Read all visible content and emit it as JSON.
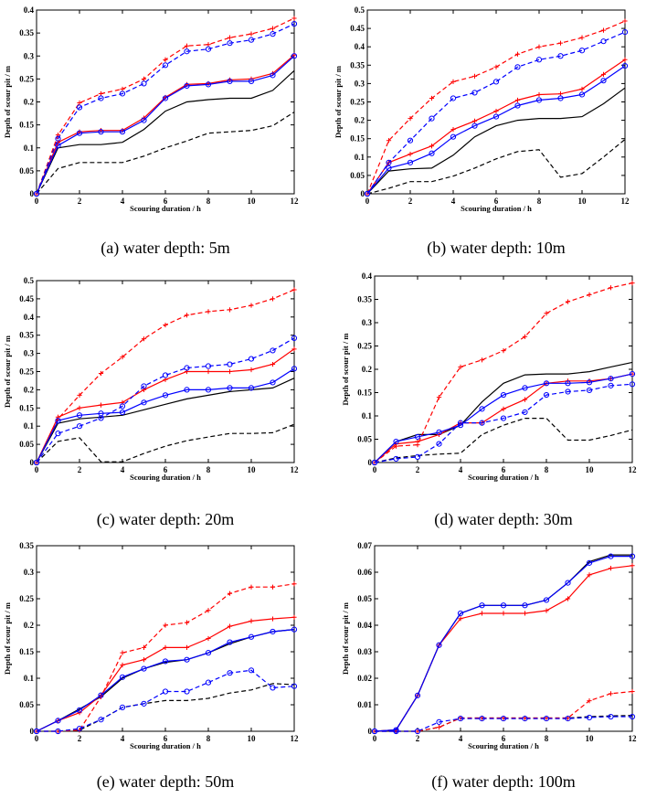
{
  "chart_data": [
    {
      "type": "line",
      "caption": "(a) water depth: 5m",
      "xlabel": "Scouring duration / h",
      "ylabel": "Depth of scour pit / m",
      "xlim": [
        0,
        12
      ],
      "ylim": [
        0,
        0.4
      ],
      "xticks": [
        "0",
        "2",
        "4",
        "6",
        "8",
        "10",
        "12"
      ],
      "yticks": [
        "0",
        "0.05",
        "0.1",
        "0.15",
        "0.2",
        "0.25",
        "0.3",
        "0.35",
        "0.4"
      ],
      "grid": false,
      "x": [
        0,
        1,
        2,
        3,
        4,
        5,
        6,
        7,
        8,
        9,
        10,
        11,
        12
      ],
      "series": [
        {
          "color": "#000000",
          "dash": "solid",
          "marker": "none",
          "values": [
            0,
            0.1,
            0.107,
            0.107,
            0.112,
            0.14,
            0.18,
            0.2,
            0.205,
            0.208,
            0.208,
            0.225,
            0.268
          ]
        },
        {
          "color": "#000000",
          "dash": "dashed",
          "marker": "none",
          "values": [
            0,
            0.055,
            0.068,
            0.068,
            0.068,
            0.082,
            0.1,
            0.115,
            0.132,
            0.135,
            0.138,
            0.148,
            0.178
          ]
        },
        {
          "color": "#ff0000",
          "dash": "solid",
          "marker": "plus",
          "values": [
            0,
            0.112,
            0.135,
            0.138,
            0.138,
            0.165,
            0.21,
            0.238,
            0.24,
            0.248,
            0.25,
            0.262,
            0.302
          ]
        },
        {
          "color": "#ff0000",
          "dash": "dashed",
          "marker": "plus",
          "values": [
            0,
            0.128,
            0.198,
            0.218,
            0.228,
            0.25,
            0.292,
            0.322,
            0.325,
            0.34,
            0.348,
            0.36,
            0.382
          ]
        },
        {
          "color": "#0000ff",
          "dash": "solid",
          "marker": "circle",
          "values": [
            0,
            0.105,
            0.132,
            0.135,
            0.135,
            0.16,
            0.208,
            0.235,
            0.238,
            0.245,
            0.245,
            0.258,
            0.3
          ]
        },
        {
          "color": "#0000ff",
          "dash": "dashed",
          "marker": "circle",
          "values": [
            0,
            0.12,
            0.188,
            0.208,
            0.218,
            0.24,
            0.28,
            0.31,
            0.315,
            0.328,
            0.335,
            0.348,
            0.37
          ]
        }
      ]
    },
    {
      "type": "line",
      "caption": "(b) water depth: 10m",
      "xlabel": "Scouring duration / h",
      "ylabel": "Depth of scour pit / m",
      "xlim": [
        0,
        12
      ],
      "ylim": [
        0,
        0.5
      ],
      "xticks": [
        "0",
        "2",
        "4",
        "6",
        "8",
        "10",
        "12"
      ],
      "yticks": [
        "0",
        "0.05",
        "0.1",
        "0.15",
        "0.2",
        "0.25",
        "0.3",
        "0.35",
        "0.4",
        "0.45",
        "0.5"
      ],
      "grid": false,
      "x": [
        0,
        1,
        2,
        3,
        4,
        5,
        6,
        7,
        8,
        9,
        10,
        11,
        12
      ],
      "series": [
        {
          "color": "#000000",
          "dash": "solid",
          "marker": "none",
          "values": [
            0,
            0.062,
            0.068,
            0.07,
            0.105,
            0.155,
            0.185,
            0.2,
            0.205,
            0.205,
            0.21,
            0.245,
            0.288
          ]
        },
        {
          "color": "#000000",
          "dash": "dashed",
          "marker": "none",
          "values": [
            0,
            0.015,
            0.033,
            0.033,
            0.048,
            0.07,
            0.095,
            0.115,
            0.12,
            0.045,
            0.055,
            0.1,
            0.148
          ]
        },
        {
          "color": "#ff0000",
          "dash": "solid",
          "marker": "plus",
          "values": [
            0,
            0.085,
            0.108,
            0.13,
            0.175,
            0.198,
            0.225,
            0.255,
            0.27,
            0.272,
            0.285,
            0.325,
            0.365
          ]
        },
        {
          "color": "#ff0000",
          "dash": "dashed",
          "marker": "plus",
          "values": [
            0,
            0.145,
            0.205,
            0.26,
            0.305,
            0.32,
            0.345,
            0.38,
            0.4,
            0.41,
            0.425,
            0.445,
            0.47
          ]
        },
        {
          "color": "#0000ff",
          "dash": "solid",
          "marker": "circle",
          "values": [
            0,
            0.07,
            0.085,
            0.11,
            0.155,
            0.185,
            0.21,
            0.24,
            0.255,
            0.26,
            0.27,
            0.308,
            0.348
          ]
        },
        {
          "color": "#0000ff",
          "dash": "dashed",
          "marker": "circle",
          "values": [
            0,
            0.085,
            0.145,
            0.205,
            0.26,
            0.275,
            0.305,
            0.345,
            0.365,
            0.375,
            0.39,
            0.415,
            0.44
          ]
        }
      ]
    },
    {
      "type": "line",
      "caption": "(c) water depth: 20m",
      "xlabel": "Scouring duration / h",
      "ylabel": "Depth of scour pit / m",
      "xlim": [
        0,
        12
      ],
      "ylim": [
        0,
        0.5
      ],
      "xticks": [
        "0",
        "2",
        "4",
        "6",
        "8",
        "10",
        "12"
      ],
      "yticks": [
        "0",
        "0.05",
        "0.1",
        "0.15",
        "0.2",
        "0.25",
        "0.3",
        "0.35",
        "0.4",
        "0.45",
        "0.5"
      ],
      "grid": false,
      "x": [
        0,
        1,
        2,
        3,
        4,
        5,
        6,
        7,
        8,
        9,
        10,
        11,
        12
      ],
      "series": [
        {
          "color": "#000000",
          "dash": "solid",
          "marker": "none",
          "values": [
            0,
            0.108,
            0.12,
            0.125,
            0.13,
            0.145,
            0.16,
            0.175,
            0.185,
            0.195,
            0.2,
            0.205,
            0.232
          ]
        },
        {
          "color": "#000000",
          "dash": "dashed",
          "marker": "none",
          "values": [
            0,
            0.058,
            0.068,
            0.002,
            0.002,
            0.025,
            0.045,
            0.06,
            0.07,
            0.08,
            0.08,
            0.082,
            0.105
          ]
        },
        {
          "color": "#ff0000",
          "dash": "solid",
          "marker": "plus",
          "values": [
            0,
            0.125,
            0.15,
            0.158,
            0.165,
            0.2,
            0.228,
            0.25,
            0.25,
            0.25,
            0.255,
            0.27,
            0.312
          ]
        },
        {
          "color": "#ff0000",
          "dash": "dashed",
          "marker": "plus",
          "values": [
            0,
            0.12,
            0.185,
            0.245,
            0.29,
            0.34,
            0.378,
            0.405,
            0.415,
            0.42,
            0.432,
            0.45,
            0.475
          ]
        },
        {
          "color": "#0000ff",
          "dash": "solid",
          "marker": "circle",
          "values": [
            0,
            0.115,
            0.13,
            0.135,
            0.138,
            0.165,
            0.185,
            0.2,
            0.2,
            0.205,
            0.205,
            0.22,
            0.258
          ]
        },
        {
          "color": "#0000ff",
          "dash": "dashed",
          "marker": "circle",
          "values": [
            0,
            0.08,
            0.1,
            0.122,
            0.155,
            0.21,
            0.24,
            0.26,
            0.265,
            0.27,
            0.285,
            0.308,
            0.342
          ]
        }
      ]
    },
    {
      "type": "line",
      "caption": "(d) water depth: 30m",
      "xlabel": "Scouring duration / h",
      "ylabel": "Depth of scour pit / m",
      "xlim": [
        0,
        12
      ],
      "ylim": [
        0,
        0.4
      ],
      "xticks": [
        "0",
        "2",
        "4",
        "6",
        "8",
        "10",
        "12"
      ],
      "yticks": [
        "0",
        "0.05",
        "0.1",
        "0.15",
        "0.2",
        "0.25",
        "0.3",
        "0.35",
        "0.4"
      ],
      "grid": false,
      "x": [
        0,
        1,
        2,
        3,
        4,
        5,
        6,
        7,
        8,
        9,
        10,
        11,
        12
      ],
      "series": [
        {
          "color": "#000000",
          "dash": "solid",
          "marker": "none",
          "values": [
            0,
            0.045,
            0.06,
            0.06,
            0.08,
            0.13,
            0.17,
            0.188,
            0.19,
            0.19,
            0.195,
            0.205,
            0.215
          ]
        },
        {
          "color": "#000000",
          "dash": "dashed",
          "marker": "none",
          "values": [
            0,
            0.01,
            0.015,
            0.018,
            0.02,
            0.06,
            0.08,
            0.095,
            0.095,
            0.048,
            0.048,
            0.058,
            0.07
          ]
        },
        {
          "color": "#ff0000",
          "dash": "solid",
          "marker": "plus",
          "values": [
            0,
            0.04,
            0.045,
            0.06,
            0.085,
            0.085,
            0.115,
            0.135,
            0.17,
            0.175,
            0.175,
            0.18,
            0.19
          ]
        },
        {
          "color": "#ff0000",
          "dash": "dashed",
          "marker": "plus",
          "values": [
            0,
            0.035,
            0.038,
            0.14,
            0.205,
            0.22,
            0.24,
            0.27,
            0.32,
            0.345,
            0.36,
            0.375,
            0.385
          ]
        },
        {
          "color": "#0000ff",
          "dash": "solid",
          "marker": "circle",
          "values": [
            0,
            0.045,
            0.055,
            0.065,
            0.08,
            0.115,
            0.145,
            0.16,
            0.17,
            0.17,
            0.172,
            0.18,
            0.19
          ]
        },
        {
          "color": "#0000ff",
          "dash": "dashed",
          "marker": "circle",
          "values": [
            0,
            0.008,
            0.012,
            0.04,
            0.085,
            0.085,
            0.095,
            0.108,
            0.145,
            0.152,
            0.155,
            0.165,
            0.168
          ]
        }
      ]
    },
    {
      "type": "line",
      "caption": "(e) water depth: 50m",
      "xlabel": "Scouring duration / h",
      "ylabel": "Depth of scour pit / m",
      "xlim": [
        0,
        12
      ],
      "ylim": [
        0,
        0.35
      ],
      "xticks": [
        "0",
        "2",
        "4",
        "6",
        "8",
        "10",
        "12"
      ],
      "yticks": [
        "0",
        "0.05",
        "0.1",
        "0.15",
        "0.2",
        "0.25",
        "0.3",
        "0.35"
      ],
      "grid": false,
      "x": [
        0,
        1,
        2,
        3,
        4,
        5,
        6,
        7,
        8,
        9,
        10,
        11,
        12
      ],
      "series": [
        {
          "color": "#000000",
          "dash": "solid",
          "marker": "none",
          "values": [
            0,
            0.02,
            0.042,
            0.065,
            0.1,
            0.118,
            0.13,
            0.135,
            0.148,
            0.165,
            0.178,
            0.188,
            0.192
          ]
        },
        {
          "color": "#000000",
          "dash": "dashed",
          "marker": "none",
          "values": [
            0,
            0.0,
            0.002,
            0.022,
            0.045,
            0.052,
            0.058,
            0.058,
            0.062,
            0.072,
            0.078,
            0.09,
            0.088
          ]
        },
        {
          "color": "#ff0000",
          "dash": "solid",
          "marker": "plus",
          "values": [
            0,
            0.02,
            0.035,
            0.068,
            0.125,
            0.135,
            0.158,
            0.158,
            0.175,
            0.198,
            0.208,
            0.212,
            0.215
          ]
        },
        {
          "color": "#ff0000",
          "dash": "dashed",
          "marker": "plus",
          "values": [
            0,
            0.0,
            0.002,
            0.065,
            0.148,
            0.158,
            0.2,
            0.205,
            0.228,
            0.26,
            0.272,
            0.272,
            0.278
          ]
        },
        {
          "color": "#0000ff",
          "dash": "solid",
          "marker": "circle",
          "values": [
            0,
            0.02,
            0.04,
            0.068,
            0.102,
            0.118,
            0.132,
            0.135,
            0.148,
            0.168,
            0.178,
            0.188,
            0.192
          ]
        },
        {
          "color": "#0000ff",
          "dash": "dashed",
          "marker": "circle",
          "values": [
            0,
            0.0,
            0.005,
            0.022,
            0.045,
            0.052,
            0.075,
            0.075,
            0.092,
            0.11,
            0.115,
            0.082,
            0.085
          ]
        }
      ]
    },
    {
      "type": "line",
      "caption": "(f) water depth: 100m",
      "xlabel": "Scouring duration / h",
      "ylabel": "Depth of scour pit / m",
      "xlim": [
        0,
        12
      ],
      "ylim": [
        0,
        0.07
      ],
      "xticks": [
        "0",
        "2",
        "4",
        "6",
        "8",
        "10",
        "12"
      ],
      "yticks": [
        "0",
        "0.01",
        "0.02",
        "0.03",
        "0.04",
        "0.05",
        "0.06",
        "0.07"
      ],
      "grid": false,
      "x": [
        0,
        1,
        2,
        3,
        4,
        5,
        6,
        7,
        8,
        9,
        10,
        11,
        12
      ],
      "series": [
        {
          "color": "#000000",
          "dash": "solid",
          "marker": "none",
          "values": [
            0,
            0.0005,
            0.0135,
            0.0325,
            0.0445,
            0.0475,
            0.0475,
            0.0475,
            0.0495,
            0.056,
            0.064,
            0.0665,
            0.0665
          ]
        },
        {
          "color": "#000000",
          "dash": "dashed",
          "marker": "none",
          "values": [
            0,
            0.0,
            0.0,
            0.0015,
            0.005,
            0.005,
            0.005,
            0.005,
            0.005,
            0.005,
            0.0055,
            0.0058,
            0.006
          ]
        },
        {
          "color": "#ff0000",
          "dash": "solid",
          "marker": "plus",
          "values": [
            0,
            0.0005,
            0.0135,
            0.0325,
            0.0425,
            0.0445,
            0.0445,
            0.0445,
            0.0455,
            0.05,
            0.059,
            0.0615,
            0.0625
          ]
        },
        {
          "color": "#ff0000",
          "dash": "dashed",
          "marker": "plus",
          "values": [
            0,
            0.0,
            0.0,
            0.0015,
            0.005,
            0.005,
            0.005,
            0.005,
            0.005,
            0.005,
            0.0115,
            0.0142,
            0.015
          ]
        },
        {
          "color": "#0000ff",
          "dash": "solid",
          "marker": "circle",
          "values": [
            0,
            0.0005,
            0.0135,
            0.0325,
            0.0445,
            0.0475,
            0.0475,
            0.0475,
            0.0495,
            0.056,
            0.0635,
            0.066,
            0.066
          ]
        },
        {
          "color": "#0000ff",
          "dash": "dashed",
          "marker": "circle",
          "values": [
            0,
            0.0,
            0.0,
            0.0035,
            0.0048,
            0.0048,
            0.0048,
            0.0048,
            0.0048,
            0.0048,
            0.0052,
            0.0055,
            0.0055
          ]
        }
      ]
    }
  ]
}
